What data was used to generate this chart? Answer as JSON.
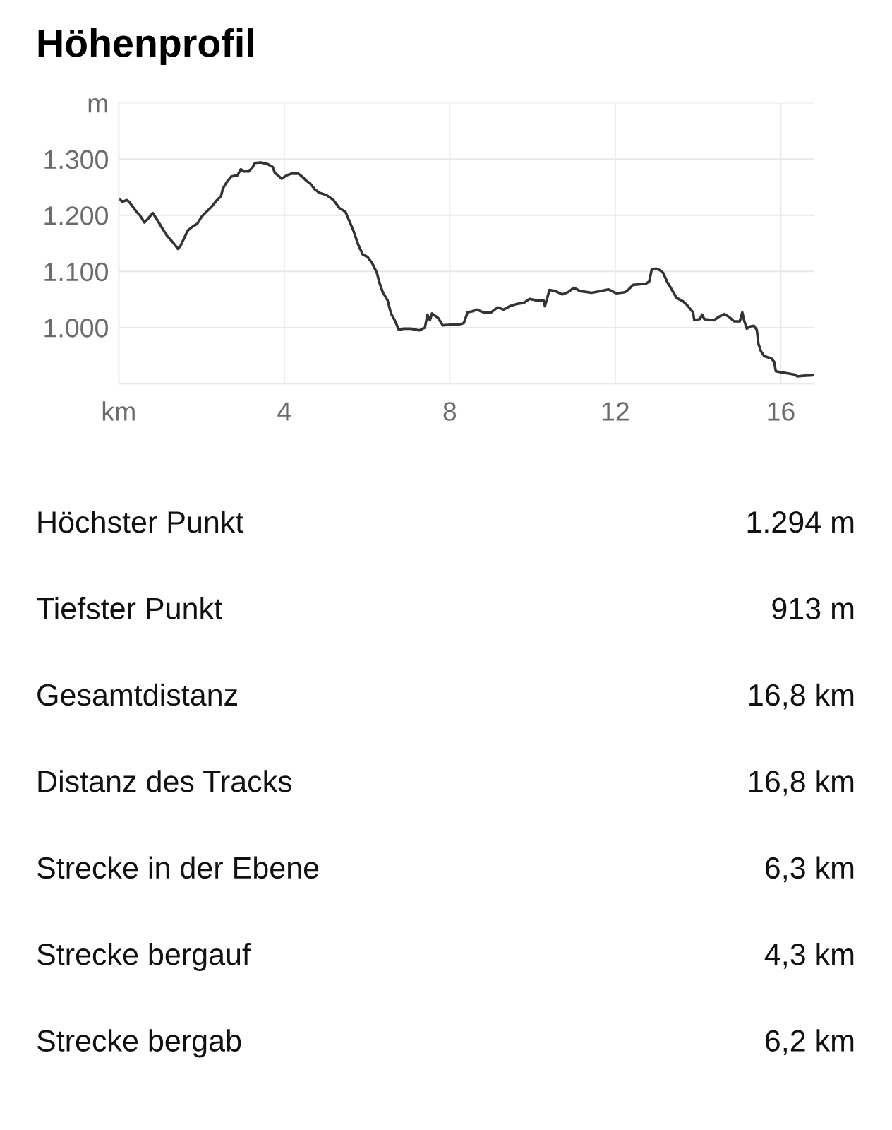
{
  "chart_data": {
    "type": "line",
    "title": "Höhenprofil",
    "x": [
      0.02,
      0.085,
      0.2,
      0.26,
      0.34,
      0.43,
      0.51,
      0.62,
      0.71,
      0.82,
      0.91,
      1.05,
      1.16,
      1.28,
      1.36,
      1.43,
      1.49,
      1.56,
      1.67,
      1.79,
      1.9,
      2.01,
      2.13,
      2.24,
      2.35,
      2.47,
      2.52,
      2.61,
      2.72,
      2.87,
      2.95,
      3.01,
      3.15,
      3.24,
      3.29,
      3.43,
      3.6,
      3.72,
      3.77,
      3.94,
      4.06,
      4.17,
      4.34,
      4.43,
      4.54,
      4.62,
      4.74,
      4.85,
      5.02,
      5.19,
      5.33,
      5.48,
      5.56,
      5.67,
      5.79,
      5.9,
      6.01,
      6.13,
      6.24,
      6.3,
      6.38,
      6.5,
      6.58,
      6.67,
      6.77,
      6.89,
      7.06,
      7.26,
      7.4,
      7.46,
      7.52,
      7.57,
      7.72,
      7.83,
      8.03,
      8.2,
      8.34,
      8.43,
      8.55,
      8.65,
      8.82,
      9.0,
      9.16,
      9.3,
      9.45,
      9.62,
      9.79,
      9.93,
      10.12,
      10.27,
      10.3,
      10.41,
      10.55,
      10.72,
      10.86,
      11.0,
      11.15,
      11.43,
      11.66,
      11.83,
      12.03,
      12.23,
      12.31,
      12.43,
      12.74,
      12.82,
      12.88,
      12.99,
      13.08,
      13.16,
      13.25,
      13.33,
      13.48,
      13.65,
      13.76,
      13.88,
      13.91,
      14.04,
      14.1,
      14.15,
      14.38,
      14.5,
      14.64,
      14.75,
      14.87,
      15.01,
      15.07,
      15.12,
      15.18,
      15.26,
      15.35,
      15.42,
      15.46,
      15.52,
      15.6,
      15.77,
      15.84,
      15.88,
      16.03,
      16.2,
      16.34,
      16.4,
      16.54,
      16.77
    ],
    "values": [
      1229,
      1224,
      1227,
      1223,
      1215,
      1206,
      1200,
      1187,
      1194,
      1204,
      1194,
      1177,
      1164,
      1154,
      1147,
      1140,
      1145,
      1156,
      1173,
      1180,
      1185,
      1198,
      1207,
      1215,
      1225,
      1234,
      1248,
      1259,
      1269,
      1271,
      1282,
      1278,
      1278,
      1286,
      1293,
      1294,
      1291,
      1286,
      1276,
      1265,
      1271,
      1274,
      1274,
      1269,
      1261,
      1257,
      1246,
      1240,
      1236,
      1227,
      1213,
      1206,
      1192,
      1173,
      1147,
      1130,
      1126,
      1114,
      1097,
      1080,
      1063,
      1048,
      1025,
      1013,
      996,
      998,
      998,
      995,
      1000,
      1023,
      1013,
      1025,
      1017,
      1004,
      1005,
      1005,
      1008,
      1027,
      1029,
      1032,
      1027,
      1027,
      1036,
      1032,
      1038,
      1042,
      1044,
      1051,
      1048,
      1048,
      1038,
      1067,
      1065,
      1059,
      1063,
      1071,
      1065,
      1062,
      1065,
      1068,
      1061,
      1063,
      1067,
      1076,
      1078,
      1082,
      1103,
      1105,
      1102,
      1097,
      1082,
      1072,
      1053,
      1046,
      1038,
      1027,
      1013,
      1015,
      1023,
      1015,
      1013,
      1019,
      1024,
      1019,
      1011,
      1011,
      1027,
      1011,
      998,
      1002,
      1003,
      996,
      971,
      958,
      949,
      945,
      939,
      922,
      920,
      918,
      916,
      913,
      914,
      915
    ],
    "color": "#333333",
    "line_style": "solid",
    "xlim": [
      0,
      16.8
    ],
    "xticks": [
      {
        "value": 0,
        "label": "km"
      },
      4,
      8,
      12,
      16
    ],
    "ylim": [
      900,
      1400
    ],
    "yticks": [
      {
        "value": 900,
        "label": null
      },
      {
        "value": 1000,
        "label": "1.000"
      },
      {
        "value": 1100,
        "label": "1.100"
      },
      {
        "value": 1200,
        "label": "1.200"
      },
      {
        "value": 1300,
        "label": "1.300"
      },
      {
        "value": 1400,
        "label": "m"
      }
    ],
    "grid": true,
    "annotations": [
      "Höchster Punkt",
      "1.294 m",
      "Tiefster Punkt",
      "913 m",
      "Gesamtdistanz",
      "16,8 km",
      "Distanz des Tracks",
      "16,8 km",
      "Strecke in der Ebene",
      "6,3 km",
      "Strecke bergauf",
      "4,3 km",
      "Strecke bergab",
      "6,2 km"
    ]
  }
}
